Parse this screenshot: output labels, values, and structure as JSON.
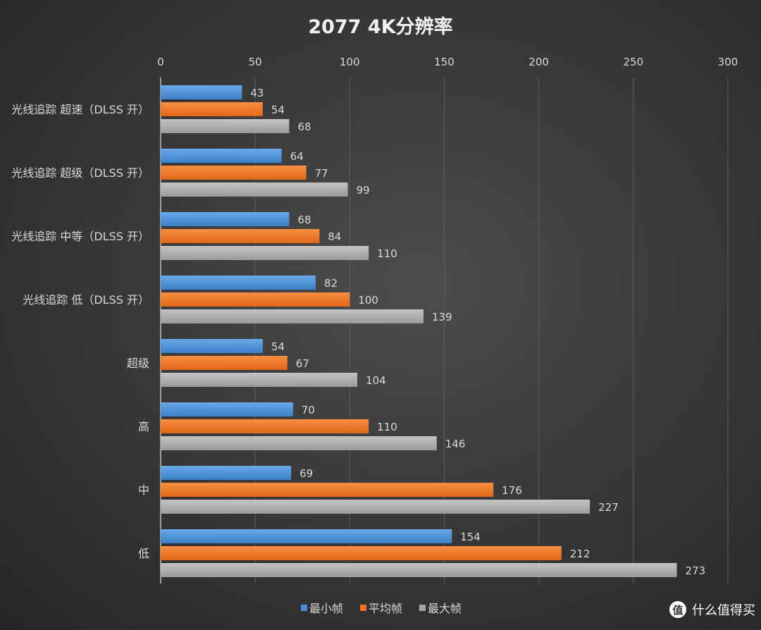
{
  "chart_data": {
    "type": "bar",
    "orientation": "horizontal",
    "title": "2077 4K分辨率",
    "categories": [
      "光线追踪 超速（DLSS 开）",
      "光线追踪 超级（DLSS 开）",
      "光线追踪 中等（DLSS 开）",
      "光线追踪 低（DLSS 开）",
      "超级",
      "高",
      "中",
      "低"
    ],
    "series": [
      {
        "name": "最小帧",
        "color": "#4a90d9",
        "values": [
          43,
          64,
          68,
          82,
          54,
          70,
          69,
          154
        ]
      },
      {
        "name": "平均帧",
        "color": "#ed7125",
        "values": [
          54,
          77,
          84,
          100,
          67,
          110,
          176,
          212
        ]
      },
      {
        "name": "最大帧",
        "color": "#a5a5a5",
        "values": [
          68,
          99,
          110,
          139,
          104,
          146,
          227,
          273
        ]
      }
    ],
    "xlim": [
      0,
      300
    ],
    "ticks": [
      0,
      50,
      100,
      150,
      200,
      250,
      300
    ],
    "xaxis_position": "top",
    "grid": true,
    "legend": "bottom",
    "data_labels": true
  },
  "watermark": {
    "icon_text": "值",
    "text": "什么值得买"
  }
}
